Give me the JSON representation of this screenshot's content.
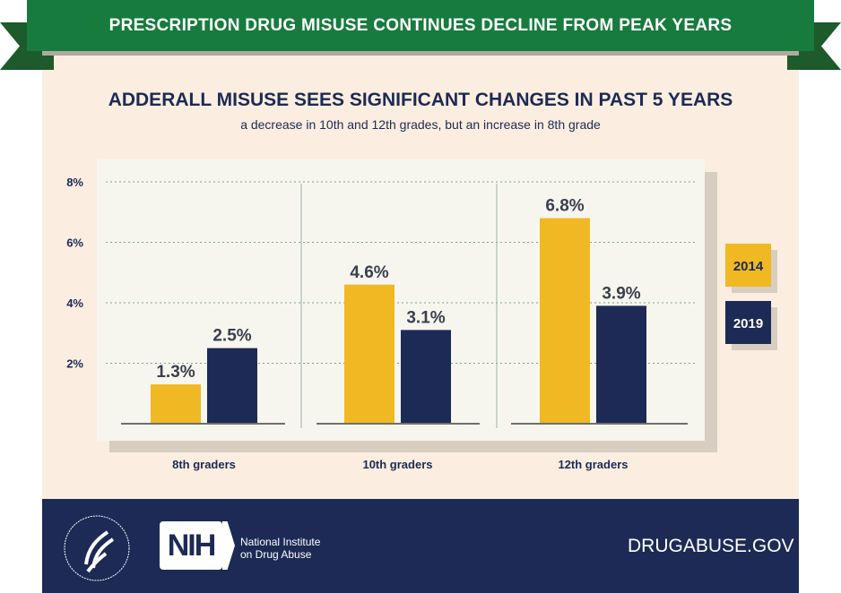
{
  "banner": {
    "title": "PRESCRIPTION DRUG MISUSE CONTINUES DECLINE FROM PEAK YEARS"
  },
  "colors": {
    "banner": "#177b3e",
    "navy": "#1c2a55",
    "gold": "#f0b823",
    "cream": "#fbeee0"
  },
  "chart_data": {
    "type": "bar",
    "title": "ADDERALL MISUSE SEES SIGNIFICANT CHANGES IN PAST 5 YEARS",
    "subtitle": "a decrease in 10th and 12th grades, but an increase in 8th grade",
    "categories": [
      "8th graders",
      "10th graders",
      "12th graders"
    ],
    "series": [
      {
        "name": "2014",
        "color": "#f0b823",
        "values": [
          1.3,
          4.6,
          6.8
        ],
        "labels": [
          "1.3%",
          "4.6%",
          "6.8%"
        ]
      },
      {
        "name": "2019",
        "color": "#1c2a55",
        "values": [
          2.5,
          3.1,
          3.9
        ],
        "labels": [
          "2.5%",
          "3.1%",
          "3.9%"
        ]
      }
    ],
    "yticks": [
      2,
      4,
      6,
      8
    ],
    "ytick_labels": [
      "2%",
      "4%",
      "6%",
      "8%"
    ],
    "ylim": [
      0,
      8
    ],
    "grid": true,
    "legend": "right"
  },
  "footer": {
    "hhs_seal": "Department of Health and Human Services USA",
    "nih": "NIH",
    "nida_line1": "National Institute",
    "nida_line2": "on Drug Abuse",
    "site": "DRUGABUSE.GOV"
  }
}
